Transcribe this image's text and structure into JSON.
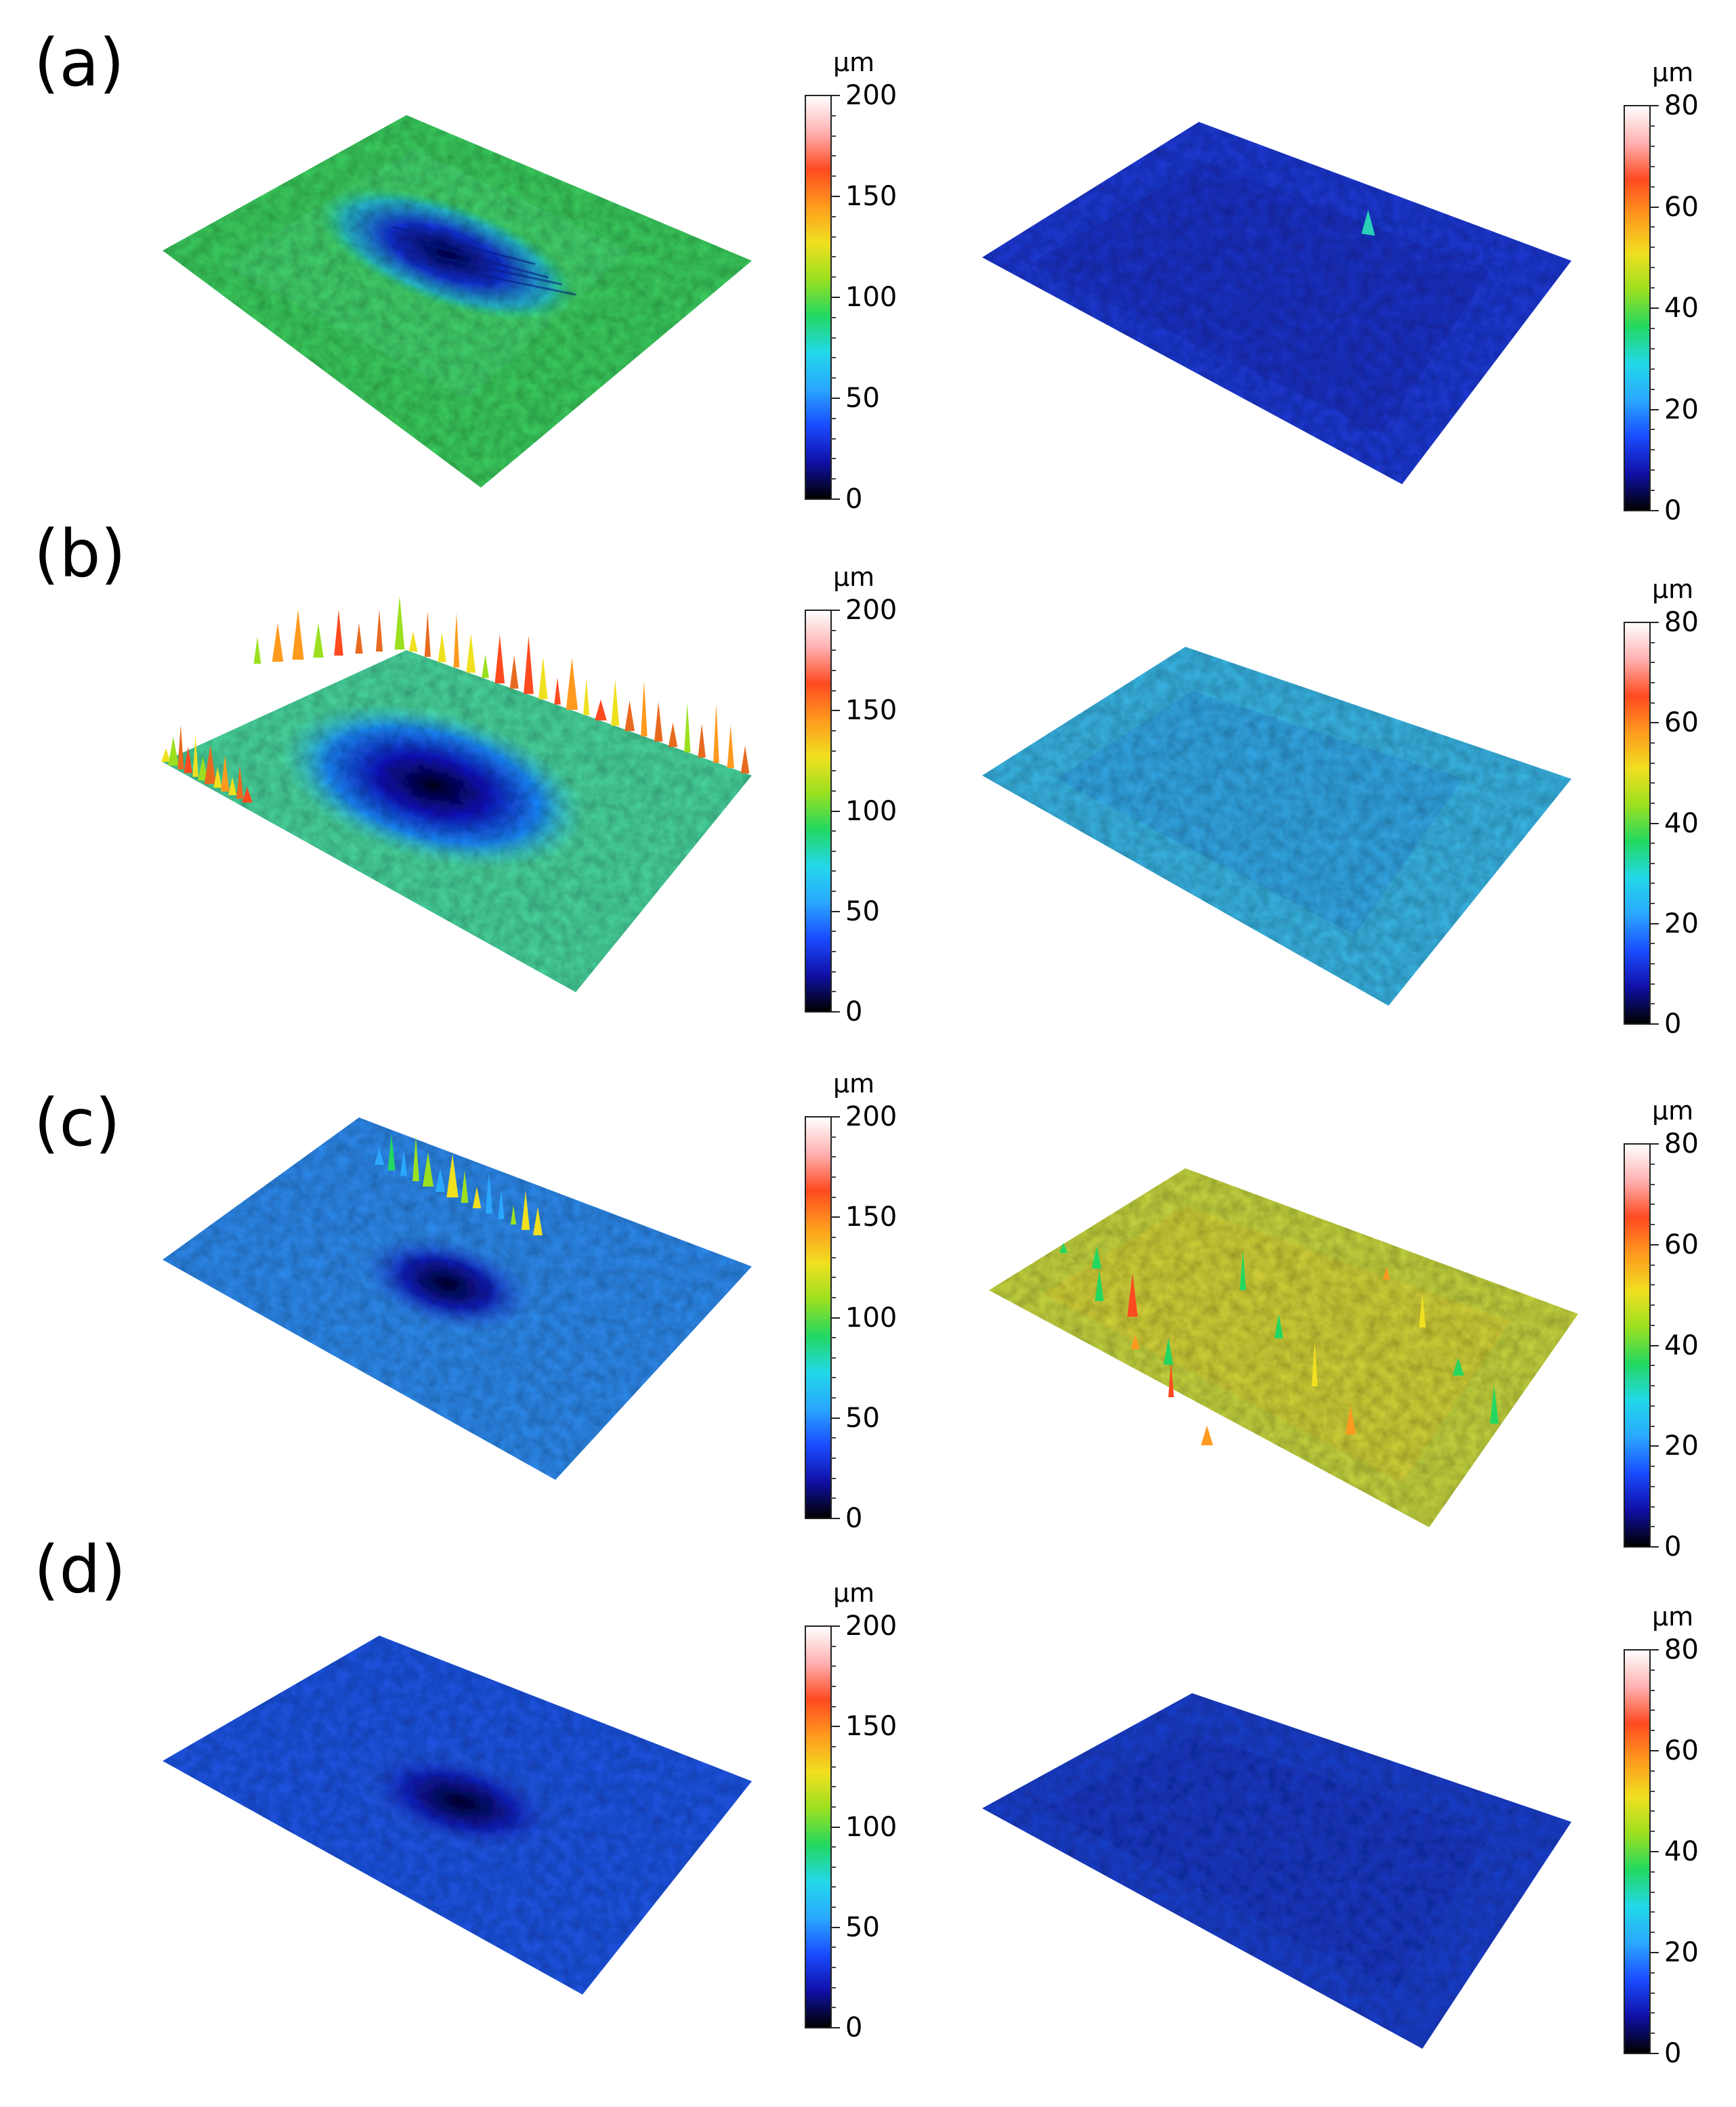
{
  "panels": [
    {
      "label": "(a)"
    },
    {
      "label": "(b)"
    },
    {
      "label": "(c)"
    },
    {
      "label": "(d)"
    }
  ],
  "colorbars": {
    "unit": "μm",
    "left_ticks": [
      "200",
      "150",
      "100",
      "50",
      "0"
    ],
    "right_ticks": [
      "80",
      "60",
      "40",
      "20",
      "0"
    ]
  },
  "colors": {
    "cmap": [
      "#000000",
      "#1010a8",
      "#1a4cff",
      "#2aa8ff",
      "#22d8e8",
      "#22d860",
      "#9be020",
      "#f0e020",
      "#ff9a1e",
      "#ff4a20",
      "#ffb0b0",
      "#ffffff"
    ],
    "a_left": "#3cd060",
    "a_right": "#1e3ad8",
    "b_left": "#4ad8a0",
    "b_right": "#3ab8e8",
    "c_left": "#2e8cf0",
    "c_right": "#c8d840",
    "d_left": "#1e56e8",
    "d_right": "#1a40d0"
  }
}
